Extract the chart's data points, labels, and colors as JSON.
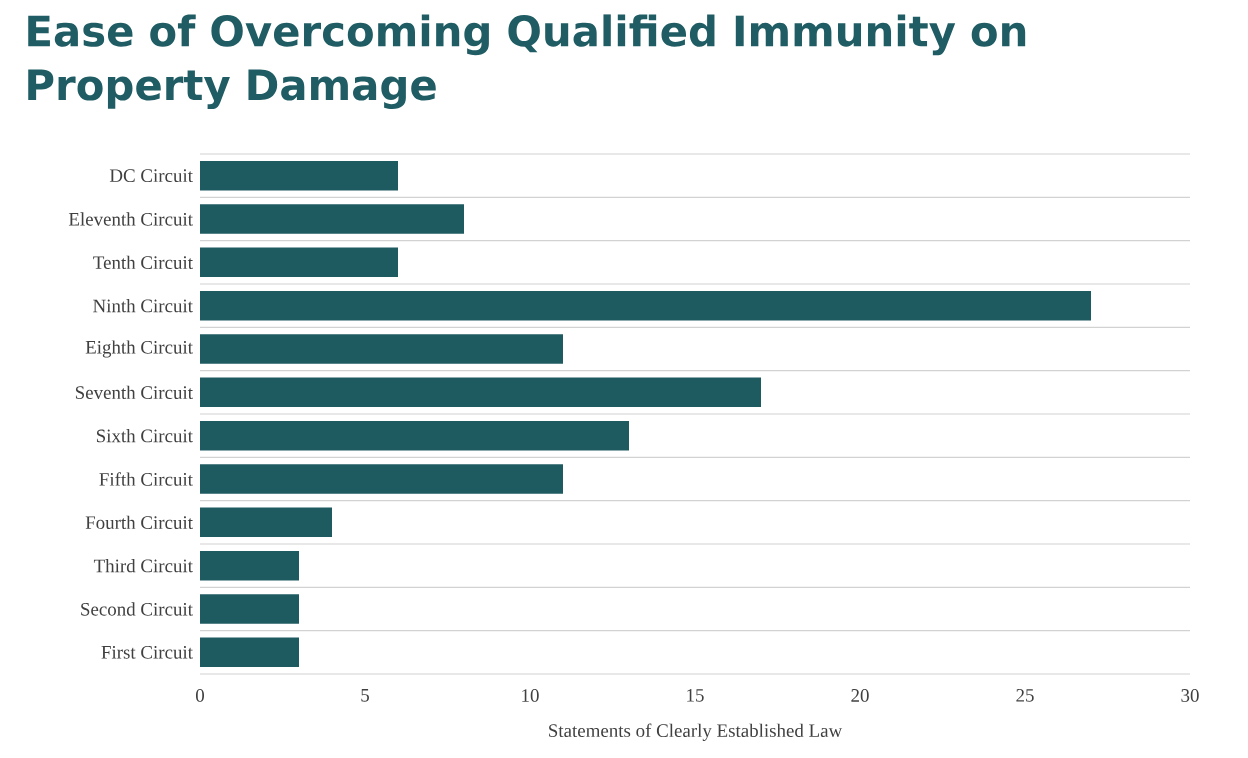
{
  "chart_data": {
    "type": "bar",
    "orientation": "horizontal",
    "title": "Ease of Overcoming Qualified Immunity on Property Damage",
    "xlabel": "Statements of Clearly Established Law",
    "categories": [
      "DC Circuit",
      "Eleventh Circuit",
      "Tenth Circuit",
      "Ninth Circuit",
      "Eighth Circuit",
      "Seventh Circuit",
      "Sixth Circuit",
      "Fifth Circuit",
      "Fourth Circuit",
      "Third Circuit",
      "Second Circuit",
      "First Circuit"
    ],
    "values": [
      6,
      8,
      6,
      27,
      11,
      17,
      13,
      11,
      4,
      3,
      3,
      3
    ],
    "color": "#1e5b60",
    "xlim": [
      0,
      30
    ],
    "xticks": [
      0,
      5,
      10,
      15,
      20,
      25,
      30
    ],
    "grid": "y"
  }
}
